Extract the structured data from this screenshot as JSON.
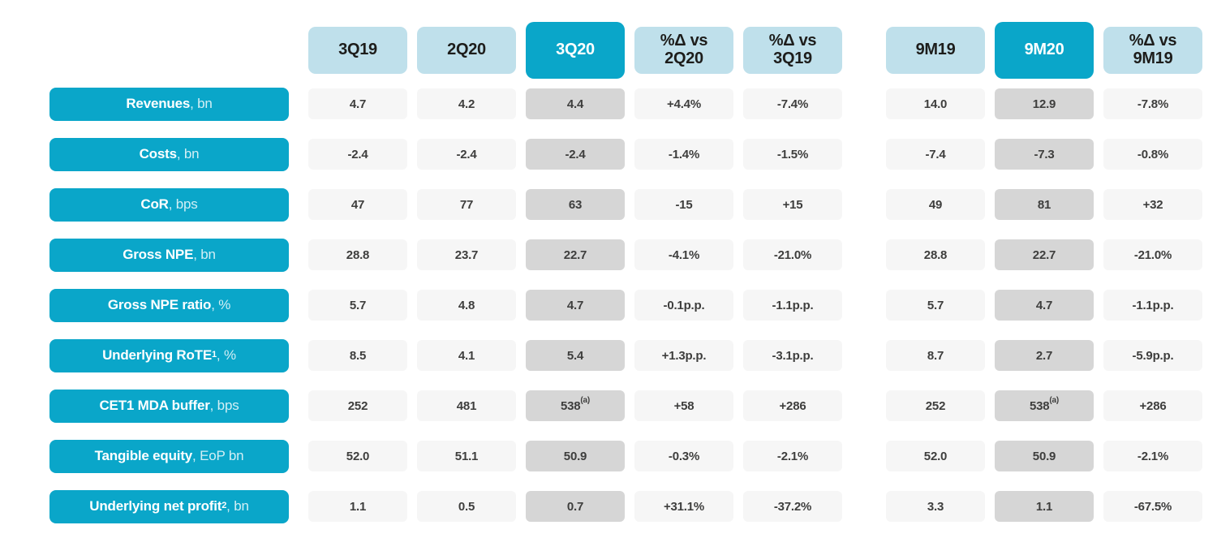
{
  "palette": {
    "accent": "#0aa6c9",
    "header_light": "#bfe0eb",
    "cell": "#f6f6f6",
    "cell_highlight": "#d6d6d6",
    "header_text": "#1d1d1b",
    "value_text": "#3e3e3d",
    "text_on_accent": "#ffffff"
  },
  "chart_data": {
    "type": "table",
    "title": "",
    "highlighted_columns": [
      "3Q20",
      "9M20"
    ],
    "footnote_marker": "(a)",
    "columns": [
      {
        "id": "3q19",
        "label": "3Q19",
        "style": "light",
        "group": "quarterly"
      },
      {
        "id": "2q20",
        "label": "2Q20",
        "style": "light",
        "group": "quarterly"
      },
      {
        "id": "3q20",
        "label": "3Q20",
        "style": "accent",
        "group": "quarterly"
      },
      {
        "id": "delta-vs-2q20",
        "label": "%Δ vs\n2Q20",
        "style": "light",
        "group": "quarterly"
      },
      {
        "id": "delta-vs-3q19",
        "label": "%Δ vs\n3Q19",
        "style": "light",
        "group": "quarterly"
      },
      {
        "id": "9m19",
        "label": "9M19",
        "style": "light",
        "group": "nine-month"
      },
      {
        "id": "9m20",
        "label": "9M20",
        "style": "accent",
        "group": "nine-month"
      },
      {
        "id": "delta-vs-9m19",
        "label": "%Δ vs\n9M19",
        "style": "light",
        "group": "nine-month"
      }
    ],
    "rows": [
      {
        "metric": "Revenues",
        "metric_sup": "",
        "unit": ", bn",
        "values": [
          "4.7",
          "4.2",
          "4.4",
          "+4.4%",
          "-7.4%",
          "14.0",
          "12.9",
          "-7.8%"
        ]
      },
      {
        "metric": "Costs",
        "metric_sup": "",
        "unit": ", bn",
        "values": [
          "-2.4",
          "-2.4",
          "-2.4",
          "-1.4%",
          "-1.5%",
          "-7.4",
          "-7.3",
          "-0.8%"
        ]
      },
      {
        "metric": "CoR",
        "metric_sup": "",
        "unit": ", bps",
        "values": [
          "47",
          "77",
          "63",
          "-15",
          "+15",
          "49",
          "81",
          "+32"
        ]
      },
      {
        "metric": "Gross NPE",
        "metric_sup": "",
        "unit": ", bn",
        "values": [
          "28.8",
          "23.7",
          "22.7",
          "-4.1%",
          "-21.0%",
          "28.8",
          "22.7",
          "-21.0%"
        ]
      },
      {
        "metric": "Gross NPE ratio",
        "metric_sup": "",
        "unit": ", %",
        "values": [
          "5.7",
          "4.8",
          "4.7",
          "-0.1p.p.",
          "-1.1p.p.",
          "5.7",
          "4.7",
          "-1.1p.p."
        ]
      },
      {
        "metric": "Underlying RoTE",
        "metric_sup": "1",
        "unit": ", %",
        "values": [
          "8.5",
          "4.1",
          "5.4",
          "+1.3p.p.",
          "-3.1p.p.",
          "8.7",
          "2.7",
          "-5.9p.p."
        ]
      },
      {
        "metric": "CET1 MDA buffer",
        "metric_sup": "",
        "unit": ", bps",
        "values": [
          "252",
          "481",
          {
            "v": "538",
            "sup": "(a)"
          },
          "+58",
          "+286",
          "252",
          {
            "v": "538",
            "sup": "(a)"
          },
          "+286"
        ]
      },
      {
        "metric": "Tangible equity",
        "metric_sup": "",
        "unit": ", EoP bn",
        "values": [
          "52.0",
          "51.1",
          "50.9",
          "-0.3%",
          "-2.1%",
          "52.0",
          "50.9",
          "-2.1%"
        ]
      },
      {
        "metric": "Underlying net profit",
        "metric_sup": "2",
        "unit": ", bn",
        "values": [
          "1.1",
          "0.5",
          "0.7",
          "+31.1%",
          "-37.2%",
          "3.3",
          "1.1",
          "-67.5%"
        ]
      }
    ]
  }
}
